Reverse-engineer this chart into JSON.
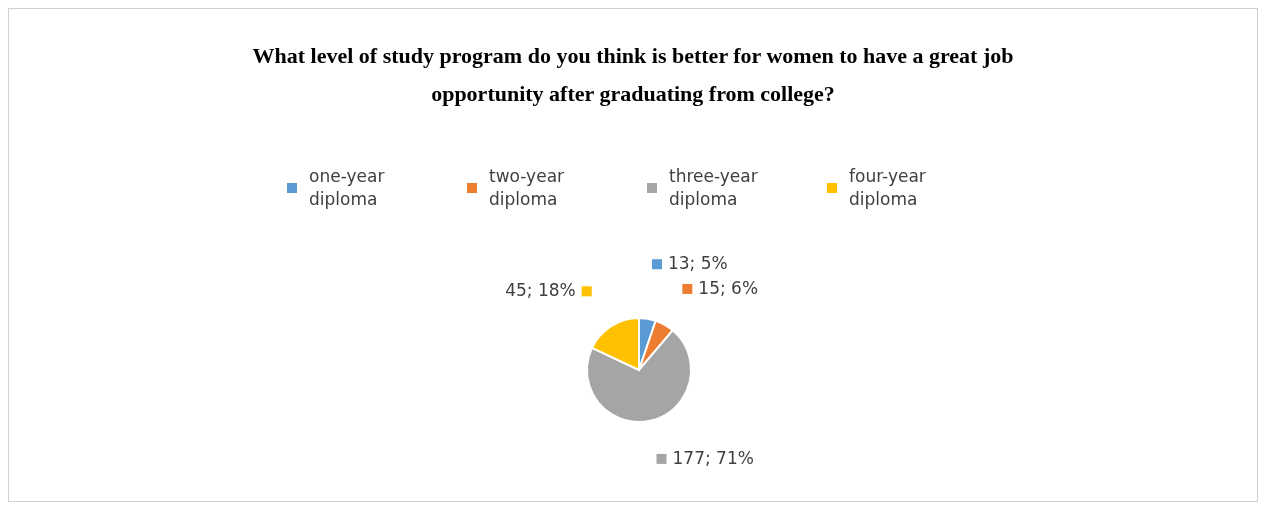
{
  "chart_data": {
    "type": "pie",
    "title": "What level of study program do you think is better for women to have a great job opportunity after graduating from college?",
    "categories": [
      "one-year diploma",
      "two-year diploma",
      "three-year diploma",
      "four-year diploma"
    ],
    "values": [
      13,
      15,
      177,
      45
    ],
    "colors": [
      "#5b9bd5",
      "#ed7d31",
      "#a5a5a5",
      "#ffc000"
    ],
    "value_labels": [
      "13; 5%",
      "15; 6%",
      "177; 71%",
      "45; 18%"
    ],
    "legend": "top"
  }
}
